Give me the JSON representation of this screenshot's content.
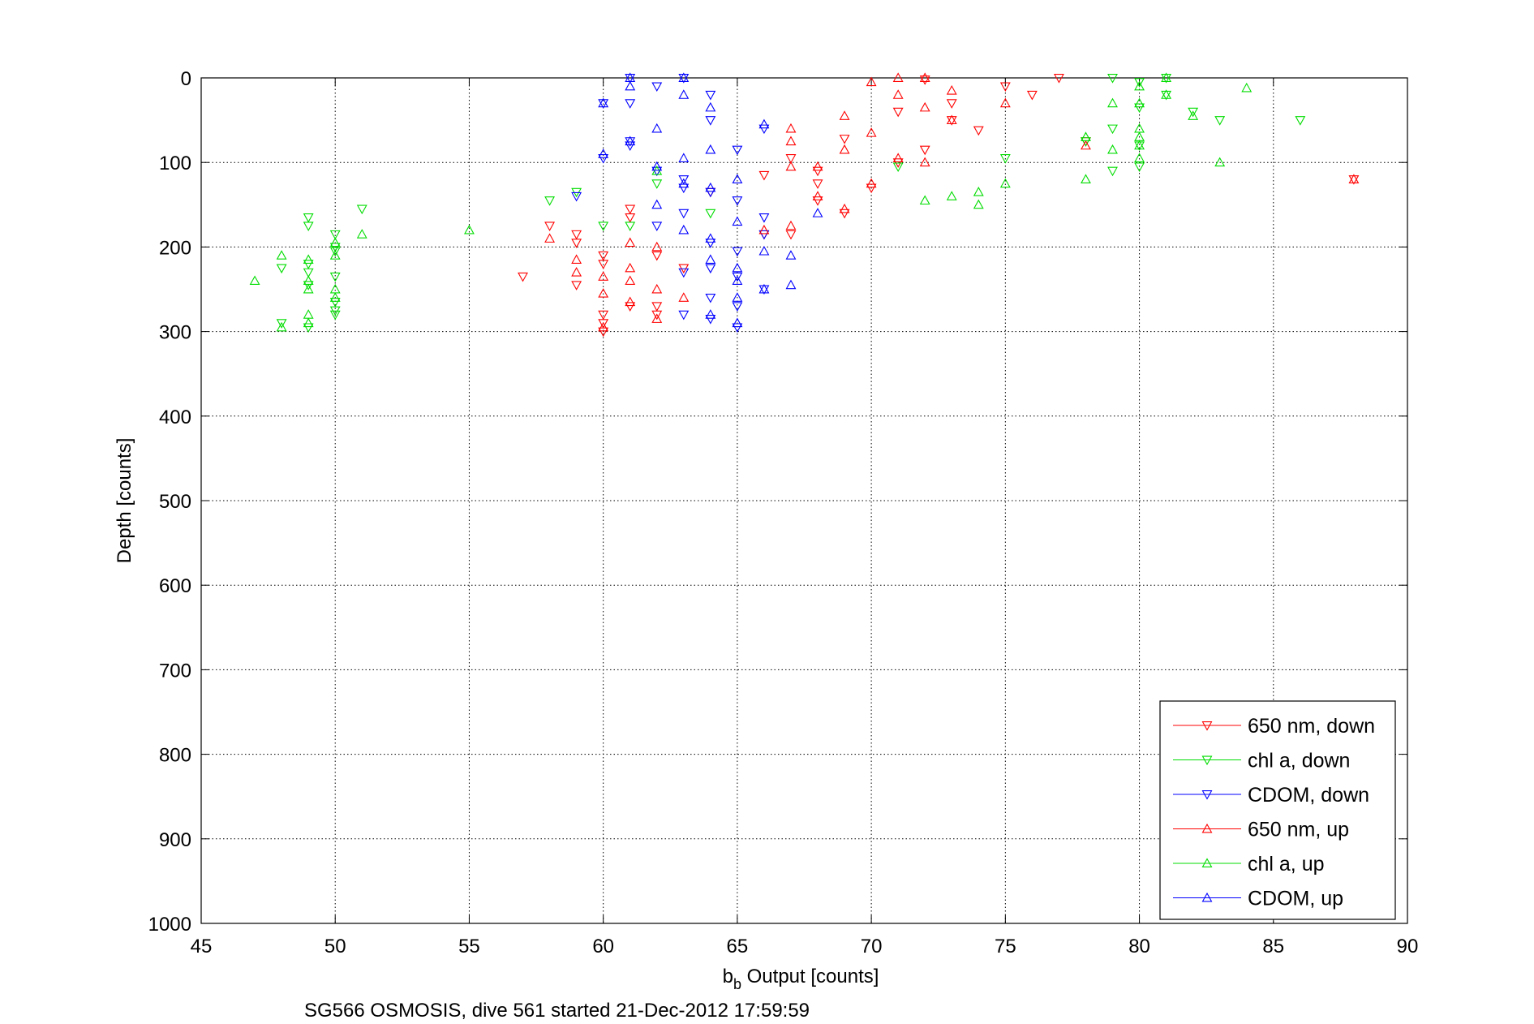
{
  "chart_data": {
    "type": "scatter",
    "xlabel_main": "b",
    "xlabel_sub": "b",
    "xlabel_rest": " Output [counts]",
    "ylabel": "Depth [counts]",
    "caption": "SG566 OSMOSIS, dive 561 started 21-Dec-2012 17:59:59",
    "xlim": [
      45,
      90
    ],
    "ylim": [
      0,
      1000
    ],
    "y_reversed": true,
    "grid": true,
    "legend_position": "bottom-right",
    "xticks": [
      45,
      50,
      55,
      60,
      65,
      70,
      75,
      80,
      85,
      90
    ],
    "yticks": [
      0,
      100,
      200,
      300,
      400,
      500,
      600,
      700,
      800,
      900,
      1000
    ],
    "xtick_labels": [
      "45",
      "50",
      "55",
      "60",
      "65",
      "70",
      "75",
      "80",
      "85",
      "90"
    ],
    "ytick_labels": [
      "0",
      "100",
      "200",
      "300",
      "400",
      "500",
      "600",
      "700",
      "800",
      "900",
      "1000"
    ],
    "series": [
      {
        "name": "650 nm, down",
        "color": "#ff0000",
        "marker": "triangle-down",
        "points": [
          [
            77,
            0
          ],
          [
            76,
            20
          ],
          [
            75,
            10
          ],
          [
            73,
            30
          ],
          [
            73,
            50
          ],
          [
            74,
            62
          ],
          [
            72,
            2
          ],
          [
            71,
            40
          ],
          [
            72,
            85
          ],
          [
            71,
            100
          ],
          [
            70,
            130
          ],
          [
            69,
            72
          ],
          [
            68,
            110
          ],
          [
            68,
            125
          ],
          [
            67,
            95
          ],
          [
            66,
            115
          ],
          [
            67,
            185
          ],
          [
            66,
            185
          ],
          [
            69,
            160
          ],
          [
            68,
            145
          ],
          [
            64,
            135
          ],
          [
            63,
            225
          ],
          [
            62,
            210
          ],
          [
            62,
            270
          ],
          [
            62,
            280
          ],
          [
            61,
            165
          ],
          [
            61,
            155
          ],
          [
            60,
            210
          ],
          [
            60,
            220
          ],
          [
            60,
            280
          ],
          [
            60,
            300
          ],
          [
            60,
            290
          ],
          [
            59,
            185
          ],
          [
            59,
            195
          ],
          [
            59,
            245
          ],
          [
            58,
            175
          ],
          [
            57,
            235
          ],
          [
            88,
            120
          ],
          [
            78,
            75
          ],
          [
            61,
            270
          ]
        ]
      },
      {
        "name": "chl a, down",
        "color": "#00dd00",
        "marker": "triangle-down",
        "points": [
          [
            86,
            50
          ],
          [
            83,
            50
          ],
          [
            82,
            40
          ],
          [
            81,
            0
          ],
          [
            81,
            20
          ],
          [
            80,
            5
          ],
          [
            80,
            35
          ],
          [
            80,
            80
          ],
          [
            80,
            105
          ],
          [
            79,
            0
          ],
          [
            79,
            60
          ],
          [
            79,
            110
          ],
          [
            78,
            75
          ],
          [
            75,
            95
          ],
          [
            71,
            105
          ],
          [
            64,
            160
          ],
          [
            62,
            125
          ],
          [
            61,
            175
          ],
          [
            60,
            175
          ],
          [
            59,
            135
          ],
          [
            58,
            145
          ],
          [
            51,
            155
          ],
          [
            50,
            185
          ],
          [
            50,
            200
          ],
          [
            50,
            205
          ],
          [
            50,
            235
          ],
          [
            50,
            265
          ],
          [
            50,
            275
          ],
          [
            50,
            280
          ],
          [
            49,
            165
          ],
          [
            49,
            175
          ],
          [
            49,
            220
          ],
          [
            49,
            230
          ],
          [
            49,
            245
          ],
          [
            49,
            295
          ],
          [
            48,
            225
          ],
          [
            48,
            290
          ]
        ]
      },
      {
        "name": "CDOM, down",
        "color": "#0000ff",
        "marker": "triangle-down",
        "points": [
          [
            61,
            0
          ],
          [
            61,
            30
          ],
          [
            61,
            75
          ],
          [
            62,
            10
          ],
          [
            62,
            110
          ],
          [
            62,
            175
          ],
          [
            63,
            0
          ],
          [
            63,
            120
          ],
          [
            63,
            130
          ],
          [
            63,
            160
          ],
          [
            63,
            230
          ],
          [
            63,
            280
          ],
          [
            64,
            20
          ],
          [
            64,
            50
          ],
          [
            64,
            135
          ],
          [
            64,
            195
          ],
          [
            64,
            225
          ],
          [
            64,
            260
          ],
          [
            64,
            285
          ],
          [
            65,
            85
          ],
          [
            65,
            145
          ],
          [
            65,
            205
          ],
          [
            65,
            235
          ],
          [
            65,
            270
          ],
          [
            65,
            295
          ],
          [
            66,
            60
          ],
          [
            66,
            165
          ],
          [
            66,
            185
          ],
          [
            66,
            250
          ],
          [
            60,
            95
          ],
          [
            61,
            80
          ],
          [
            59,
            140
          ],
          [
            60,
            30
          ]
        ]
      },
      {
        "name": "650 nm, up",
        "color": "#ff0000",
        "marker": "triangle-up",
        "points": [
          [
            88,
            120
          ],
          [
            78,
            80
          ],
          [
            75,
            30
          ],
          [
            73,
            15
          ],
          [
            73,
            50
          ],
          [
            72,
            0
          ],
          [
            72,
            35
          ],
          [
            72,
            100
          ],
          [
            71,
            0
          ],
          [
            71,
            20
          ],
          [
            71,
            95
          ],
          [
            70,
            5
          ],
          [
            70,
            65
          ],
          [
            70,
            125
          ],
          [
            69,
            45
          ],
          [
            69,
            85
          ],
          [
            69,
            155
          ],
          [
            68,
            105
          ],
          [
            68,
            140
          ],
          [
            67,
            60
          ],
          [
            67,
            75
          ],
          [
            67,
            105
          ],
          [
            67,
            175
          ],
          [
            66,
            180
          ],
          [
            62,
            200
          ],
          [
            62,
            250
          ],
          [
            62,
            285
          ],
          [
            61,
            195
          ],
          [
            61,
            225
          ],
          [
            61,
            240
          ],
          [
            61,
            265
          ],
          [
            60,
            235
          ],
          [
            60,
            255
          ],
          [
            60,
            295
          ],
          [
            59,
            215
          ],
          [
            59,
            230
          ],
          [
            58,
            190
          ],
          [
            63,
            260
          ]
        ]
      },
      {
        "name": "chl a, up",
        "color": "#00dd00",
        "marker": "triangle-up",
        "points": [
          [
            84,
            12
          ],
          [
            83,
            100
          ],
          [
            82,
            45
          ],
          [
            81,
            0
          ],
          [
            81,
            20
          ],
          [
            80,
            10
          ],
          [
            80,
            30
          ],
          [
            80,
            60
          ],
          [
            80,
            70
          ],
          [
            80,
            80
          ],
          [
            80,
            95
          ],
          [
            79,
            30
          ],
          [
            79,
            85
          ],
          [
            78,
            70
          ],
          [
            78,
            120
          ],
          [
            75,
            125
          ],
          [
            74,
            135
          ],
          [
            74,
            150
          ],
          [
            73,
            140
          ],
          [
            72,
            145
          ],
          [
            62,
            110
          ],
          [
            55,
            180
          ],
          [
            51,
            185
          ],
          [
            50,
            195
          ],
          [
            50,
            210
          ],
          [
            50,
            250
          ],
          [
            50,
            260
          ],
          [
            49,
            215
          ],
          [
            49,
            240
          ],
          [
            49,
            250
          ],
          [
            49,
            280
          ],
          [
            49,
            290
          ],
          [
            48,
            210
          ],
          [
            48,
            295
          ],
          [
            47,
            240
          ]
        ]
      },
      {
        "name": "CDOM, up",
        "color": "#0000ff",
        "marker": "triangle-up",
        "points": [
          [
            61,
            0
          ],
          [
            61,
            10
          ],
          [
            62,
            60
          ],
          [
            62,
            105
          ],
          [
            62,
            150
          ],
          [
            63,
            0
          ],
          [
            63,
            20
          ],
          [
            63,
            95
          ],
          [
            63,
            125
          ],
          [
            63,
            180
          ],
          [
            64,
            35
          ],
          [
            64,
            85
          ],
          [
            64,
            130
          ],
          [
            64,
            190
          ],
          [
            64,
            215
          ],
          [
            64,
            280
          ],
          [
            65,
            120
          ],
          [
            65,
            170
          ],
          [
            65,
            225
          ],
          [
            65,
            240
          ],
          [
            65,
            260
          ],
          [
            65,
            290
          ],
          [
            66,
            55
          ],
          [
            66,
            205
          ],
          [
            66,
            250
          ],
          [
            67,
            210
          ],
          [
            67,
            245
          ],
          [
            68,
            160
          ],
          [
            60,
            30
          ],
          [
            60,
            90
          ],
          [
            61,
            75
          ]
        ]
      }
    ]
  }
}
